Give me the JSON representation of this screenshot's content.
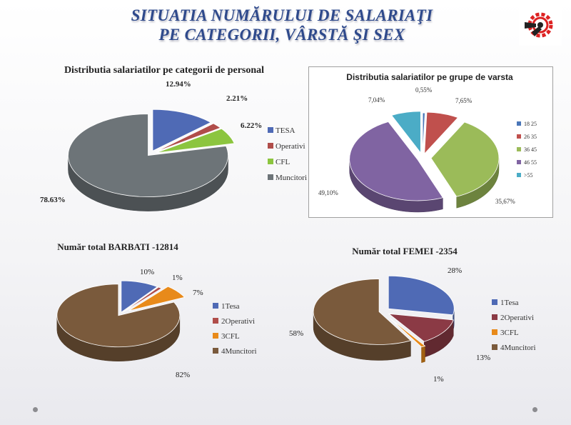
{
  "title": {
    "line1": "SITUATIA NUMĂRULUI DE SALARIAŢI",
    "line2": "PE CATEGORII, VÂRSTĂ ŞI SEX"
  },
  "icons": {
    "logo": "gear-logo-icon",
    "navigation": "slide-dot-icon"
  },
  "chart_data": [
    {
      "type": "pie",
      "title": "Distributia salariatilor pe categorii de personal",
      "labels": [
        "TESA",
        "Operativi",
        "CFL",
        "Muncitori"
      ],
      "values": [
        12.94,
        2.21,
        6.22,
        78.63
      ],
      "value_labels": [
        "12.94%",
        "2.21%",
        "6.22%",
        "78.63%"
      ],
      "colors": [
        "#4f6ab5",
        "#b04d4a",
        "#8cc53f",
        "#6d7478"
      ],
      "legend": "right"
    },
    {
      "type": "pie",
      "title": "Distributia salariatilor pe grupe de varsta",
      "labels": [
        "18 25",
        "26 35",
        "36 45",
        "46 55",
        ">55"
      ],
      "values": [
        0.55,
        7.65,
        35.67,
        49.1,
        7.04
      ],
      "value_labels": [
        "0,55%",
        "7,65%",
        "35,67%",
        "49,10%",
        "7,04%"
      ],
      "colors": [
        "#4a76b8",
        "#c0504d",
        "#9bbb59",
        "#8064a2",
        "#4bacc6"
      ],
      "legend": "right"
    },
    {
      "type": "pie",
      "title": "Număr total BARBATI -12814",
      "labels": [
        "1Tesa",
        "2Operativi",
        "3CFL",
        "4Muncitori"
      ],
      "values": [
        10,
        1,
        7,
        82
      ],
      "value_labels": [
        "10%",
        "1%",
        "7%",
        "82%"
      ],
      "colors": [
        "#4f6ab5",
        "#b04d4a",
        "#e88a1a",
        "#7a5a3c"
      ],
      "legend": "right"
    },
    {
      "type": "pie",
      "title": "Număr total FEMEI -2354",
      "labels": [
        "1Tesa",
        "2Operativi",
        "3CFL",
        "4Muncitori"
      ],
      "values": [
        28,
        13,
        1,
        58
      ],
      "value_labels": [
        "28%",
        "13%",
        "1%",
        "58%"
      ],
      "colors": [
        "#4f6ab5",
        "#8b3a45",
        "#e88a1a",
        "#7a5a3c"
      ],
      "legend": "right"
    }
  ]
}
